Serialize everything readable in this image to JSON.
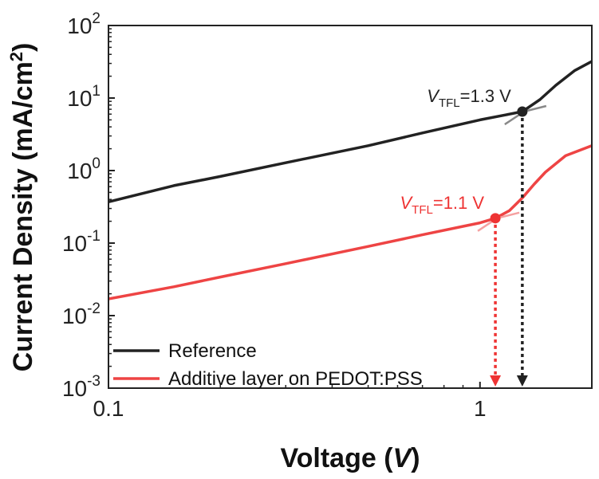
{
  "chart_data": {
    "type": "line",
    "scale": {
      "x": "log",
      "y": "log"
    },
    "xlabel_prefix": "Voltage (",
    "xlabel_var": "V",
    "xlabel_suffix": ")",
    "ylabel_main": "Current Density (mA/cm",
    "ylabel_sup": "2",
    "ylabel_close": ")",
    "xlim": [
      0.1,
      2.0
    ],
    "ylim": [
      0.001,
      100
    ],
    "x_ticks": [
      {
        "value": 0.1,
        "label": "0.1"
      },
      {
        "value": 1,
        "label": "1"
      }
    ],
    "y_ticks": [
      {
        "value": 0.001,
        "base": "10",
        "exp": "-3"
      },
      {
        "value": 0.01,
        "base": "10",
        "exp": "-2"
      },
      {
        "value": 0.1,
        "base": "10",
        "exp": "-1"
      },
      {
        "value": 1,
        "base": "10",
        "exp": "0"
      },
      {
        "value": 10,
        "base": "10",
        "exp": "1"
      },
      {
        "value": 100,
        "base": "10",
        "exp": "2"
      }
    ],
    "series": [
      {
        "name": "Reference",
        "color": "#222222",
        "x": [
          0.1,
          0.15,
          0.2,
          0.3,
          0.5,
          0.7,
          1.0,
          1.2,
          1.3,
          1.45,
          1.6,
          1.8,
          2.0
        ],
        "y": [
          0.37,
          0.62,
          0.83,
          1.28,
          2.2,
          3.3,
          5.0,
          6.0,
          6.5,
          9.5,
          15,
          24,
          32
        ]
      },
      {
        "name": "Additive layer on PEDOT:PSS",
        "color": "#ee4444",
        "x": [
          0.1,
          0.15,
          0.2,
          0.3,
          0.5,
          0.7,
          0.9,
          1.0,
          1.1,
          1.2,
          1.3,
          1.4,
          1.5,
          1.7,
          2.0
        ],
        "y": [
          0.017,
          0.025,
          0.034,
          0.052,
          0.09,
          0.13,
          0.17,
          0.19,
          0.22,
          0.28,
          0.42,
          0.65,
          0.95,
          1.6,
          2.2
        ]
      }
    ],
    "annotations": [
      {
        "series": 0,
        "v": "V",
        "sub": "TFL",
        "rest": "=1.3 V",
        "x": 1.3,
        "y": 6.5,
        "color": "#222222",
        "marker": "#222222",
        "tangent": "#888888"
      },
      {
        "series": 1,
        "v": "V",
        "sub": "TFL",
        "rest": "=1.1 V",
        "x": 1.1,
        "y": 0.22,
        "color": "#ee3333",
        "marker": "#ee3333",
        "tangent": "#f5a0a0"
      }
    ],
    "legend_position": "bottom-left"
  }
}
